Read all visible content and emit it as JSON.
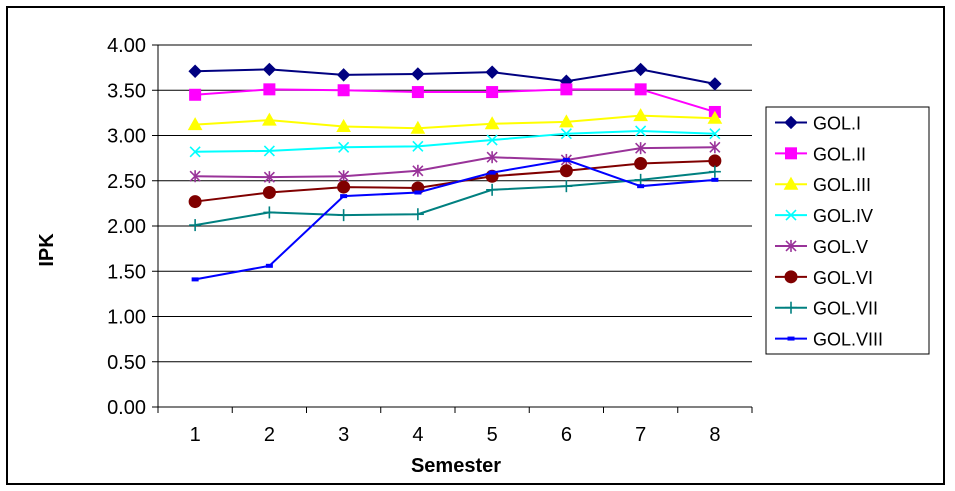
{
  "chart_data": {
    "type": "line",
    "title": "",
    "xlabel": "Semester",
    "ylabel": "IPK",
    "ylim": [
      0,
      4
    ],
    "y_ticks": [
      "0.00",
      "0.50",
      "1.00",
      "1.50",
      "2.00",
      "2.50",
      "3.00",
      "3.50",
      "4.00"
    ],
    "x": [
      "1",
      "2",
      "3",
      "4",
      "5",
      "6",
      "7",
      "8"
    ],
    "grid": "horizontal major gridlines",
    "legend_position": "right",
    "series": [
      {
        "name": "GOL.I",
        "color": "#000080",
        "marker": "diamond",
        "values": [
          3.71,
          3.73,
          3.67,
          3.68,
          3.7,
          3.6,
          3.73,
          3.57
        ]
      },
      {
        "name": "GOL.II",
        "color": "#ff00ff",
        "marker": "square",
        "values": [
          3.45,
          3.51,
          3.5,
          3.48,
          3.48,
          3.51,
          3.51,
          3.26
        ]
      },
      {
        "name": "GOL.III",
        "color": "#ffff00",
        "marker": "triangle",
        "values": [
          3.12,
          3.17,
          3.1,
          3.08,
          3.13,
          3.15,
          3.22,
          3.19
        ]
      },
      {
        "name": "GOL.IV",
        "color": "#00ffff",
        "marker": "x",
        "values": [
          2.82,
          2.83,
          2.87,
          2.88,
          2.95,
          3.02,
          3.05,
          3.02
        ]
      },
      {
        "name": "GOL.V",
        "color": "#993399",
        "marker": "star",
        "values": [
          2.55,
          2.54,
          2.55,
          2.61,
          2.76,
          2.73,
          2.86,
          2.87
        ]
      },
      {
        "name": "GOL.VI",
        "color": "#800000",
        "marker": "circle",
        "values": [
          2.27,
          2.37,
          2.43,
          2.42,
          2.55,
          2.61,
          2.69,
          2.72
        ]
      },
      {
        "name": "GOL.VII",
        "color": "#008080",
        "marker": "plus",
        "values": [
          2.01,
          2.15,
          2.12,
          2.13,
          2.4,
          2.44,
          2.51,
          2.6
        ]
      },
      {
        "name": "GOL.VIII",
        "color": "#0000ff",
        "marker": "dash",
        "values": [
          1.41,
          1.56,
          2.33,
          2.37,
          2.59,
          2.73,
          2.44,
          2.51
        ]
      }
    ]
  }
}
